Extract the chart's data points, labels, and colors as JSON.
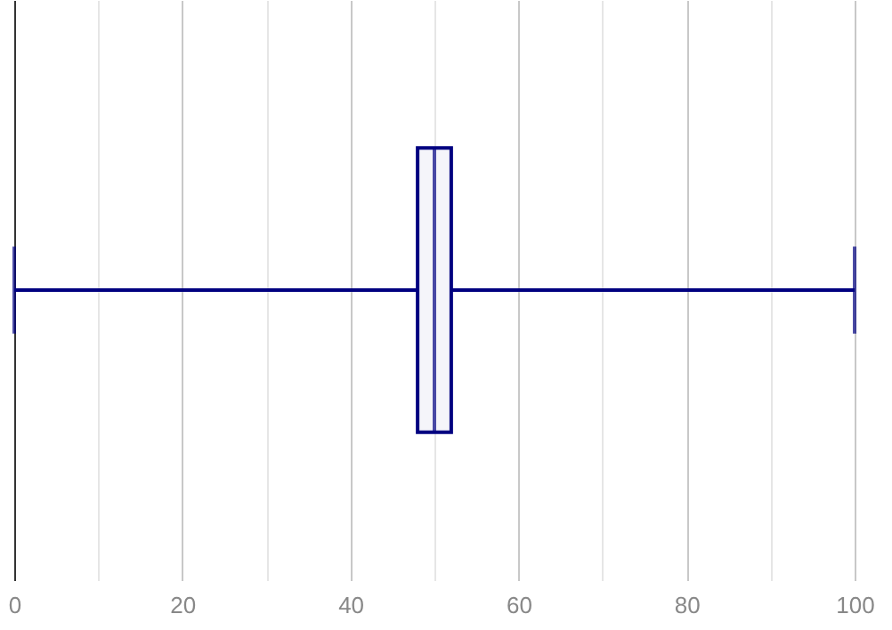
{
  "chart_data": {
    "type": "box",
    "orientation": "horizontal",
    "categories": [
      null
    ],
    "series": [
      {
        "color": "#000080",
        "boxes": [
          {
            "low": 0,
            "q1": 48,
            "median": 50,
            "q3": 52,
            "high": 100
          }
        ]
      }
    ],
    "xlim": [
      0,
      100
    ],
    "xticks": [
      0,
      {
        "value": 10,
        "label": null
      },
      20,
      {
        "value": 30,
        "label": null
      },
      40,
      {
        "value": 50,
        "label": null
      },
      60,
      {
        "value": 70,
        "label": null
      },
      80,
      {
        "value": 90,
        "label": null
      },
      100
    ],
    "grid": "x",
    "tick_labels": "x"
  }
}
